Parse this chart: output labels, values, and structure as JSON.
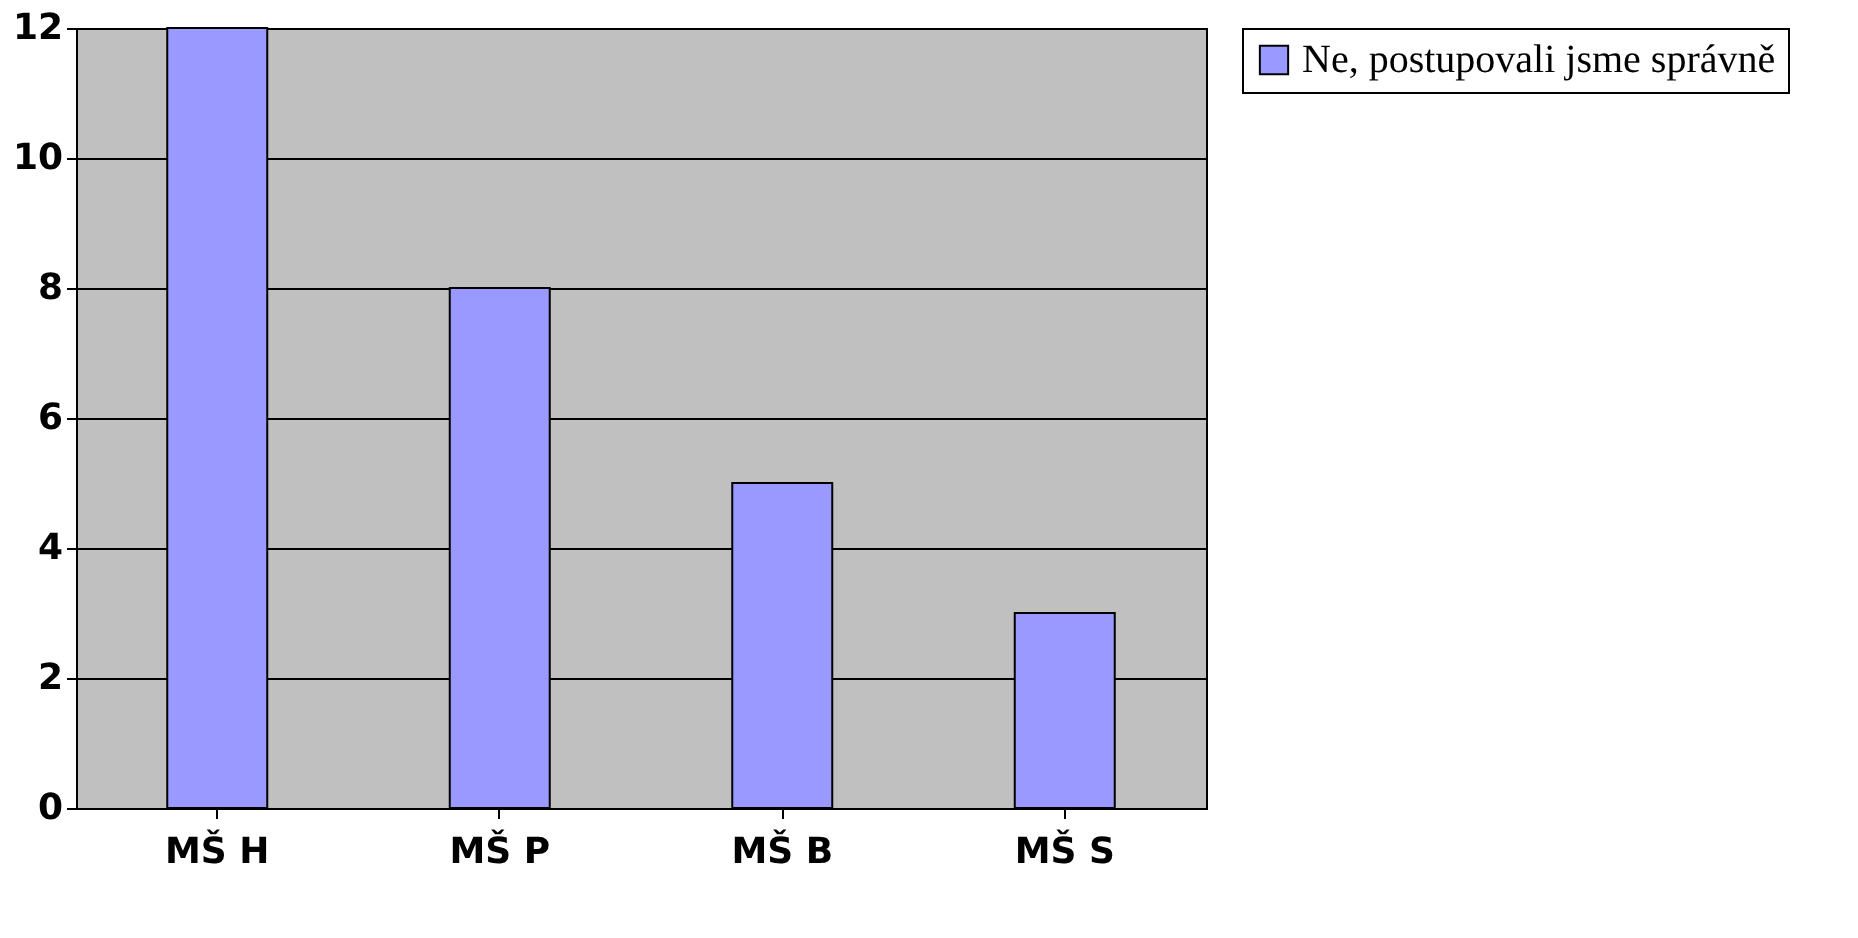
{
  "chart_data": {
    "type": "bar",
    "categories": [
      "MŠ H",
      "MŠ P",
      "MŠ B",
      "MŠ S"
    ],
    "series": [
      {
        "name": "Ne, postupovali jsme správně",
        "color": "#9999ff",
        "values": [
          12,
          8,
          5,
          3
        ]
      }
    ],
    "ylim": [
      0,
      12
    ],
    "yticks": [
      0,
      2,
      4,
      6,
      8,
      10,
      12
    ],
    "grid": "y",
    "legend": "right"
  }
}
